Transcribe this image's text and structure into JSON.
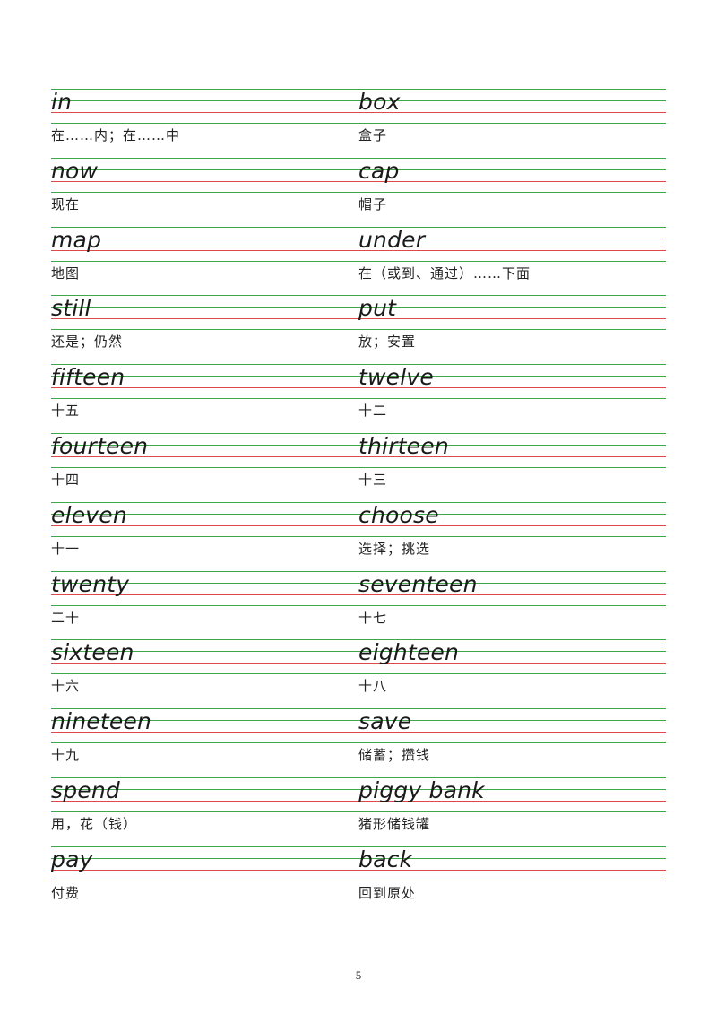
{
  "vocabulary": [
    {
      "left": {
        "word": "in",
        "meaning": "在……内；在……中"
      },
      "right": {
        "word": "box",
        "meaning": "盒子"
      }
    },
    {
      "left": {
        "word": "now",
        "meaning": "现在"
      },
      "right": {
        "word": "cap",
        "meaning": "帽子"
      }
    },
    {
      "left": {
        "word": "map",
        "meaning": "地图"
      },
      "right": {
        "word": "under",
        "meaning": "在（或到、通过）……下面"
      }
    },
    {
      "left": {
        "word": "still",
        "meaning": "还是；仍然"
      },
      "right": {
        "word": "put",
        "meaning": "放；安置"
      }
    },
    {
      "left": {
        "word": "fifteen",
        "meaning": "十五"
      },
      "right": {
        "word": "twelve",
        "meaning": "十二"
      }
    },
    {
      "left": {
        "word": "fourteen",
        "meaning": "十四"
      },
      "right": {
        "word": "thirteen",
        "meaning": "十三"
      }
    },
    {
      "left": {
        "word": "eleven",
        "meaning": "十一"
      },
      "right": {
        "word": "choose",
        "meaning": "选择；挑选"
      }
    },
    {
      "left": {
        "word": "twenty",
        "meaning": "二十"
      },
      "right": {
        "word": "seventeen",
        "meaning": "十七"
      }
    },
    {
      "left": {
        "word": "sixteen",
        "meaning": "十六"
      },
      "right": {
        "word": "eighteen",
        "meaning": "十八"
      }
    },
    {
      "left": {
        "word": "nineteen",
        "meaning": "十九"
      },
      "right": {
        "word": "save",
        "meaning": "储蓄；攒钱"
      }
    },
    {
      "left": {
        "word": "spend",
        "meaning": "用，花（钱）"
      },
      "right": {
        "word": "piggy bank",
        "meaning": "猪形储钱罐"
      }
    },
    {
      "left": {
        "word": "pay",
        "meaning": "付费"
      },
      "right": {
        "word": "back",
        "meaning": "回到原处"
      }
    }
  ],
  "page_number": "5"
}
